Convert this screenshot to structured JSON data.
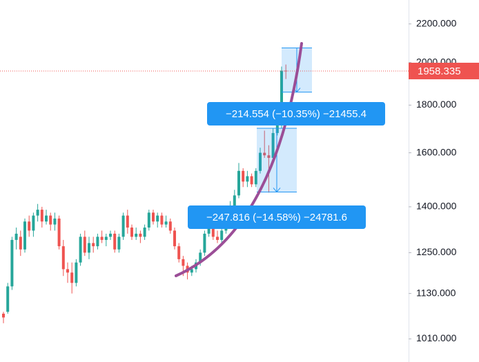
{
  "chart_data": {
    "type": "candlestick",
    "log_scale": true,
    "ylim": [
      954,
      2334
    ],
    "yticks": [
      {
        "value": 2200,
        "label": "2200.000"
      },
      {
        "value": 2000,
        "label": "2000.000"
      },
      {
        "value": 1800,
        "label": "1800.000"
      },
      {
        "value": 1600,
        "label": "1600.000"
      },
      {
        "value": 1400,
        "label": "1400.000"
      },
      {
        "value": 1250,
        "label": "1250.000"
      },
      {
        "value": 1130,
        "label": "1130.000"
      },
      {
        "value": 1010,
        "label": "1010.000"
      }
    ],
    "up_color": "#26a69a",
    "down_color": "#ef5350",
    "open": [
      1075,
      1080,
      1150,
      1290,
      1300,
      1260,
      1350,
      1320,
      1370,
      1390,
      1350,
      1370,
      1340,
      1360,
      1270,
      1200,
      1190,
      1160,
      1220,
      1300,
      1250,
      1280,
      1270,
      1300,
      1290,
      1300,
      1310,
      1260,
      1300,
      1370,
      1330,
      1300,
      1310,
      1300,
      1330,
      1380,
      1350,
      1370,
      1340,
      1350,
      1320,
      1270,
      1230,
      1210,
      1190,
      1200,
      1220,
      1250,
      1310,
      1330,
      1300,
      1290,
      1320,
      1340,
      1400,
      1440,
      1530,
      1490,
      1510,
      1480,
      1530,
      1600,
      1590,
      1580,
      1680,
      1720,
      1960
    ],
    "high": [
      1080,
      1160,
      1300,
      1330,
      1320,
      1360,
      1370,
      1380,
      1410,
      1400,
      1390,
      1380,
      1380,
      1370,
      1290,
      1220,
      1220,
      1230,
      1310,
      1320,
      1300,
      1300,
      1310,
      1320,
      1310,
      1320,
      1320,
      1310,
      1380,
      1390,
      1340,
      1330,
      1320,
      1340,
      1390,
      1390,
      1380,
      1380,
      1370,
      1360,
      1330,
      1280,
      1240,
      1220,
      1210,
      1230,
      1260,
      1320,
      1340,
      1340,
      1320,
      1330,
      1350,
      1420,
      1460,
      1560,
      1540,
      1530,
      1520,
      1540,
      1620,
      1690,
      1630,
      1700,
      1750,
      1980,
      1990
    ],
    "low": [
      1050,
      1075,
      1140,
      1260,
      1240,
      1250,
      1300,
      1300,
      1350,
      1330,
      1340,
      1320,
      1320,
      1260,
      1180,
      1160,
      1130,
      1150,
      1210,
      1240,
      1230,
      1250,
      1260,
      1280,
      1270,
      1290,
      1250,
      1250,
      1290,
      1310,
      1290,
      1290,
      1280,
      1290,
      1320,
      1340,
      1330,
      1330,
      1330,
      1310,
      1260,
      1220,
      1180,
      1170,
      1180,
      1190,
      1210,
      1240,
      1300,
      1290,
      1280,
      1280,
      1310,
      1330,
      1390,
      1430,
      1470,
      1470,
      1470,
      1470,
      1520,
      1580,
      1450,
      1570,
      1670,
      1700,
      1920
    ],
    "close": [
      1065,
      1150,
      1290,
      1310,
      1260,
      1350,
      1320,
      1370,
      1390,
      1350,
      1370,
      1340,
      1360,
      1270,
      1200,
      1190,
      1160,
      1220,
      1300,
      1250,
      1280,
      1270,
      1300,
      1290,
      1300,
      1310,
      1260,
      1300,
      1370,
      1330,
      1300,
      1310,
      1300,
      1330,
      1380,
      1350,
      1370,
      1340,
      1350,
      1320,
      1270,
      1230,
      1210,
      1190,
      1200,
      1220,
      1250,
      1310,
      1330,
      1300,
      1290,
      1320,
      1340,
      1400,
      1440,
      1530,
      1490,
      1510,
      1480,
      1530,
      1600,
      1590,
      1580,
      1680,
      1720,
      1960,
      1958.335
    ],
    "measures": [
      {
        "label": "−214.554 (−10.35%) −21455.4",
        "from": 2073.4,
        "to": 1858.8
      },
      {
        "label": "−247.816 (−14.58%) −24781.6",
        "from": 1700,
        "to": 1452.2
      }
    ]
  }
}
